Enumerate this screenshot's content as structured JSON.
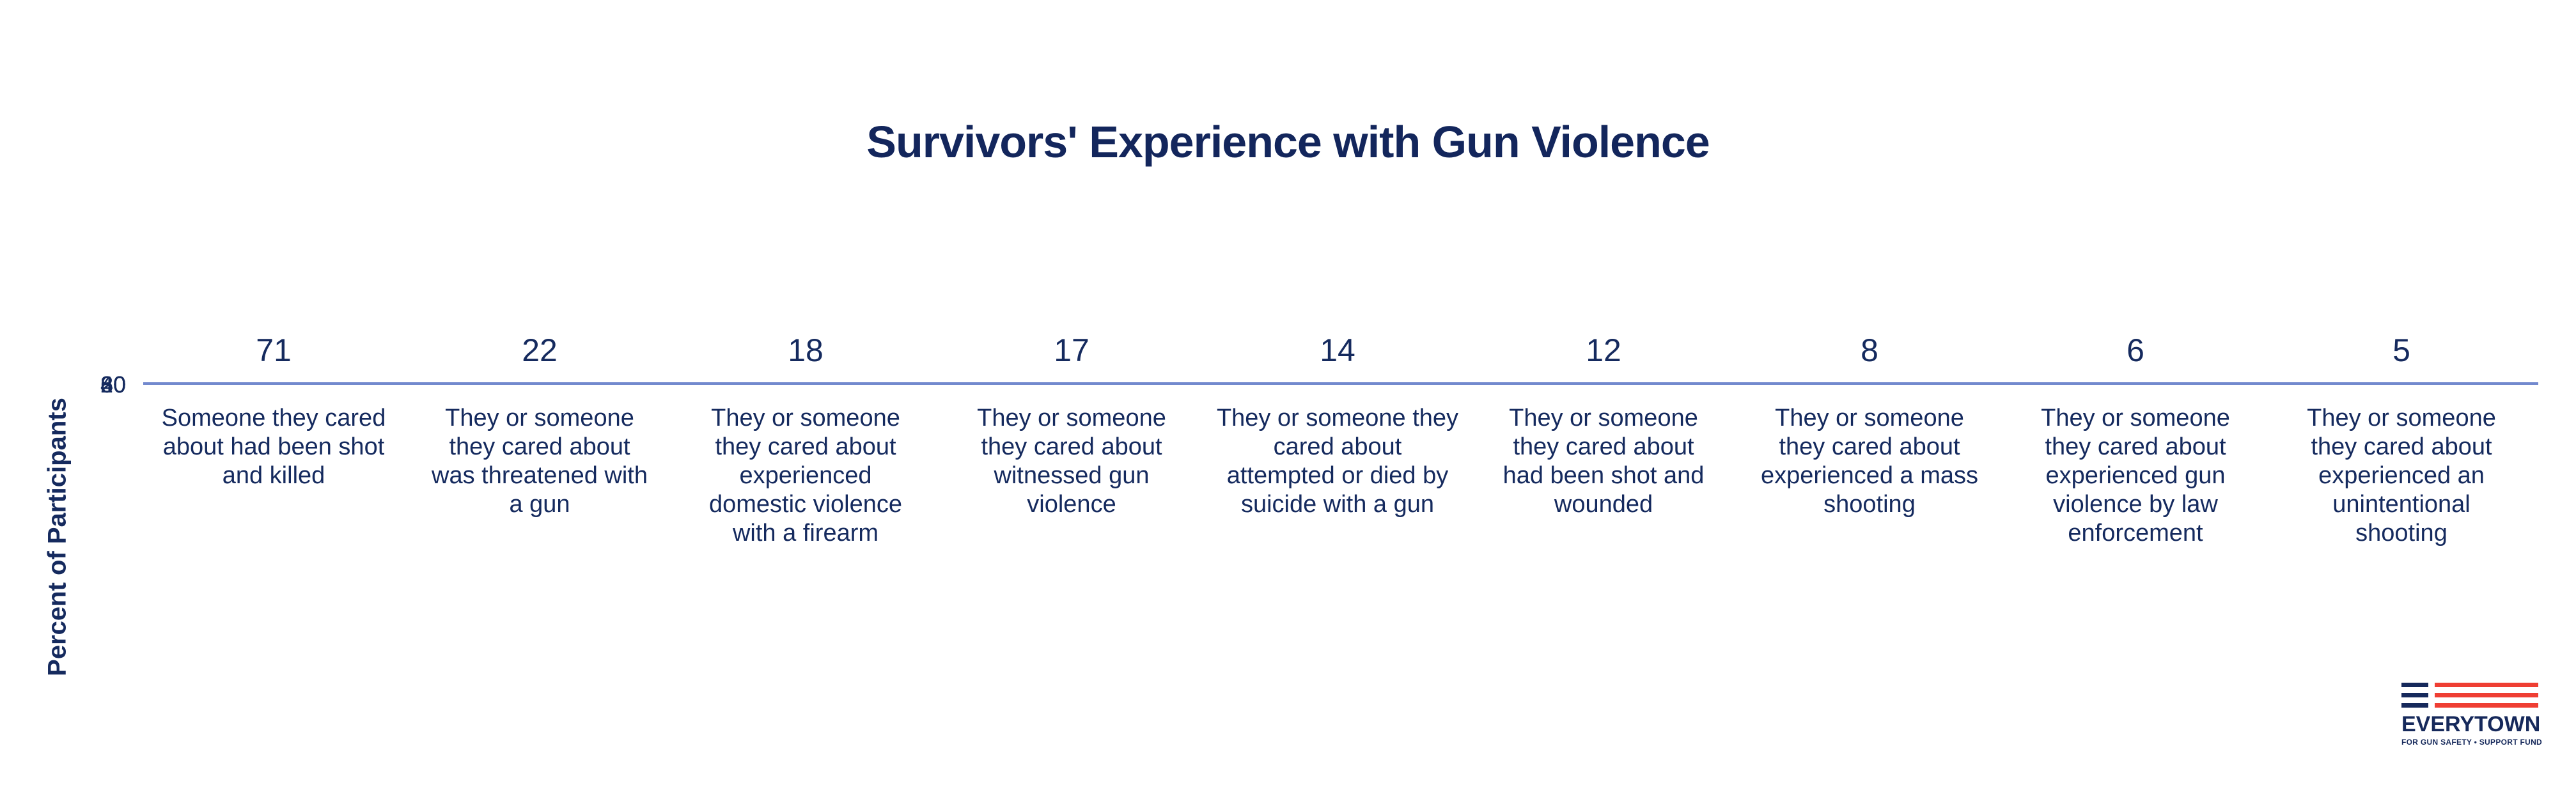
{
  "title": "Survivors' Experience with Gun Violence",
  "y_axis": {
    "label": "Percent of Participants",
    "ticks": [
      "0",
      "20",
      "40",
      "60",
      "80"
    ]
  },
  "items": [
    {
      "value": 71,
      "label": "Someone they cared\nabout had been shot\nand killed"
    },
    {
      "value": 22,
      "label": "They or someone\nthey cared about\nwas threatened with\na gun"
    },
    {
      "value": 18,
      "label": "They or someone\nthey cared about\nexperienced\ndomestic violence\nwith a firearm"
    },
    {
      "value": 17,
      "label": "They or someone\nthey cared about\nwitnessed gun\nviolence"
    },
    {
      "value": 14,
      "label": "They or someone they\ncared about\nattempted or died by\nsuicide with a gun"
    },
    {
      "value": 12,
      "label": "They or someone\nthey cared about\nhad been shot and\nwounded"
    },
    {
      "value": 8,
      "label": "They or someone\nthey cared about\nexperienced a mass\nshooting"
    },
    {
      "value": 6,
      "label": "They or someone\nthey cared about\nexperienced gun\nviolence by law\nenforcement"
    },
    {
      "value": 5,
      "label": "They or someone\nthey cared about\nexperienced an\nunintentional\nshooting"
    }
  ],
  "logo": {
    "wordmark": "EVERYTOWN",
    "tagline": "FOR GUN SAFETY • SUPPORT FUND"
  },
  "colors": {
    "navy_text": "#152a5e",
    "title_navy": "#13265c",
    "axis_line": "#7289ce",
    "logo_navy": "#16295b",
    "logo_red": "#ef3e33",
    "background": "#ffffff"
  },
  "chart_data": {
    "type": "bar",
    "title": "Survivors' Experience with Gun Violence",
    "xlabel": "",
    "ylabel": "Percent of Participants",
    "categories": [
      "Someone they cared about had been shot and killed",
      "They or someone they cared about was threatened with a gun",
      "They or someone they cared about experienced domestic violence with a firearm",
      "They or someone they cared about witnessed gun violence",
      "They or someone they cared about attempted or died by suicide with a gun",
      "They or someone they cared about had been shot and wounded",
      "They or someone they cared about experienced a mass shooting",
      "They or someone they cared about experienced gun violence by law enforcement",
      "They or someone they cared about experienced an unintentional shooting"
    ],
    "values": [
      71,
      22,
      18,
      17,
      14,
      12,
      8,
      6,
      5
    ],
    "ylim": [
      0,
      80
    ],
    "y_ticks": [
      0,
      20,
      40,
      60,
      80
    ],
    "grid": false,
    "legend": "none",
    "data_labels": "above axis, one per category",
    "note_layout": "bars not visibly rendered; y-axis collapsed so tick labels overlap at axis line"
  }
}
